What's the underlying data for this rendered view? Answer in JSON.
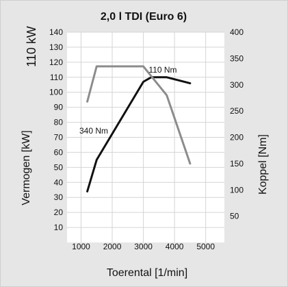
{
  "chart_data": {
    "type": "line",
    "title": "2,0 l TDI (Euro 6)",
    "side_label": "110 kW",
    "xlabel": "Toerental [1/min]",
    "ylabel_left": "Vermogen [kW]",
    "ylabel_right": "Koppel [Nm]",
    "x_ticks": [
      1000,
      2000,
      3000,
      4000,
      5000
    ],
    "y_left_ticks": [
      10,
      20,
      30,
      40,
      50,
      60,
      70,
      80,
      90,
      100,
      110,
      120,
      130,
      140
    ],
    "y_right_ticks": [
      50,
      100,
      150,
      200,
      250,
      300,
      350,
      400
    ],
    "xlim": [
      550,
      5600
    ],
    "ylim_left": [
      0,
      140
    ],
    "ylim_right": [
      0,
      400
    ],
    "annotations": [
      {
        "text": "110 Nm",
        "series": "power"
      },
      {
        "text": "340 Nm",
        "series": "torque"
      }
    ],
    "series": [
      {
        "key": "power",
        "axis": "left",
        "color": "#111111",
        "x": [
          1200,
          1500,
          3000,
          3250,
          3750,
          4500
        ],
        "y": [
          34,
          55,
          107,
          110,
          110,
          106
        ]
      },
      {
        "key": "torque",
        "axis": "right",
        "color": "#8c8c8c",
        "x": [
          1200,
          1500,
          3000,
          3750,
          4500
        ],
        "y": [
          268,
          335,
          335,
          280,
          150
        ]
      }
    ],
    "grid": true
  }
}
